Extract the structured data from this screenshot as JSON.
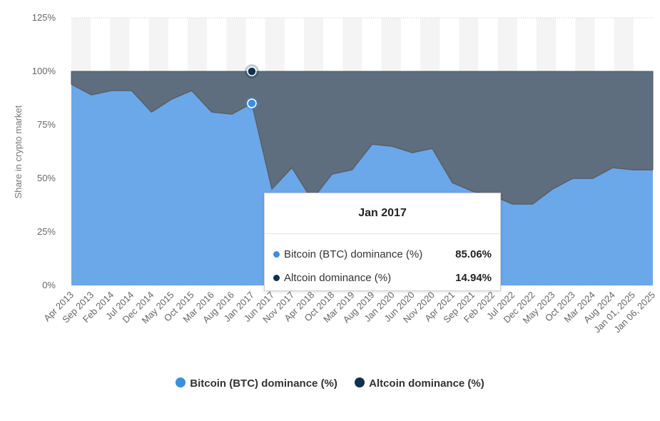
{
  "colors": {
    "btc": "#6aa8ea",
    "btc_line": "#5a5f66",
    "alt": "#5e6e7e",
    "alt_dot": "#10314e",
    "btc_dot": "#3b8ee0",
    "grid": "#c9c9c9",
    "band": "#f4f4f4"
  },
  "tooltip": {
    "title": "Jan 2017",
    "rows": [
      {
        "label": "Bitcoin (BTC) dominance (%)",
        "value": "85.06%"
      },
      {
        "label": "Altcoin dominance (%)",
        "value": "14.94%"
      }
    ]
  },
  "legend": [
    {
      "label": "Bitcoin (BTC) dominance (%)",
      "icon": "circle-btc"
    },
    {
      "label": "Altcoin dominance (%)",
      "icon": "circle-altcoin"
    }
  ],
  "chart_data": {
    "type": "area",
    "stacked": true,
    "ylabel": "Share in crypto market",
    "ylim": [
      0,
      125
    ],
    "yticks": [
      "0%",
      "25%",
      "50%",
      "75%",
      "100%",
      "125%"
    ],
    "grid": true,
    "legend_position": "bottom",
    "x_tick_labels": [
      "Apr 2013",
      "Sep 2013",
      "Feb 2014",
      "Jul 2014",
      "Dec 2014",
      "May 2015",
      "Oct 2015",
      "Mar 2016",
      "Aug 2016",
      "Jan 2017",
      "Jun 2017",
      "Nov 2017",
      "Apr 2018",
      "Oct 2018",
      "Mar 2019",
      "Aug 2019",
      "Jan 2020",
      "Jun 2020",
      "Nov 2020",
      "Apr 2021",
      "Sep 2021",
      "Feb 2022",
      "Jul 2022",
      "Dec 2022",
      "May 2023",
      "Oct 2023",
      "Mar 2024",
      "Aug 2024",
      "Jan 01, 2025",
      "Jan 06, 2025"
    ],
    "highlight_index": 9,
    "series": [
      {
        "name": "Bitcoin (BTC) dominance (%)",
        "values": [
          94,
          89,
          91,
          91,
          81,
          87,
          91,
          81,
          80,
          85.06,
          45,
          55,
          40,
          52,
          54,
          66,
          65,
          62,
          64,
          48,
          44,
          42,
          38,
          38,
          45,
          50,
          50,
          55,
          54,
          54
        ]
      },
      {
        "name": "Altcoin dominance (%)",
        "values": [
          6,
          11,
          9,
          9,
          19,
          13,
          9,
          19,
          20,
          14.94,
          55,
          45,
          60,
          48,
          46,
          34,
          35,
          38,
          36,
          52,
          56,
          58,
          62,
          62,
          55,
          50,
          50,
          45,
          46,
          46
        ]
      }
    ]
  }
}
